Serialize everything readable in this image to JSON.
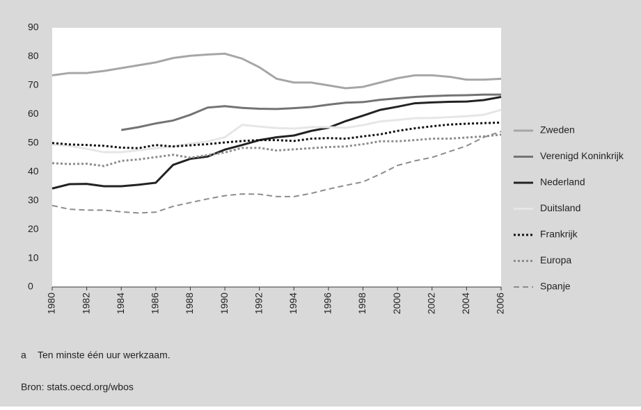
{
  "chart_data": {
    "type": "line",
    "x": [
      1980,
      1981,
      1982,
      1983,
      1984,
      1985,
      1986,
      1987,
      1988,
      1989,
      1990,
      1991,
      1992,
      1993,
      1994,
      1995,
      1996,
      1997,
      1998,
      1999,
      2000,
      2001,
      2002,
      2003,
      2004,
      2005,
      2006
    ],
    "xlim": [
      1980,
      2006
    ],
    "xticks": [
      1980,
      1982,
      1984,
      1986,
      1988,
      1990,
      1992,
      1994,
      1996,
      1998,
      2000,
      2002,
      2004,
      2006
    ],
    "ylim": [
      0,
      90
    ],
    "yticks": [
      0,
      10,
      20,
      30,
      40,
      50,
      60,
      70,
      80,
      90
    ],
    "legend": "right",
    "series": [
      {
        "name": "Zweden",
        "color": "#a6a6a6",
        "style": "solid",
        "width": 3,
        "values": [
          73.5,
          74.3,
          74.3,
          75,
          76,
          77,
          78,
          79.5,
          80.3,
          80.7,
          81,
          79.3,
          76.3,
          72.3,
          71,
          71,
          70,
          69,
          69.5,
          71,
          72.5,
          73.5,
          73.5,
          73,
          72,
          72,
          72.3
        ]
      },
      {
        "name": "Verenigd Koninkrijk",
        "color": "#737373",
        "style": "solid",
        "width": 3,
        "values": [
          null,
          null,
          null,
          null,
          54.5,
          55.5,
          56.8,
          57.8,
          59.8,
          62.3,
          62.8,
          62.2,
          61.9,
          61.8,
          62.1,
          62.5,
          63.3,
          64,
          64.2,
          65,
          65.5,
          66,
          66.3,
          66.5,
          66.6,
          66.8,
          66.8
        ]
      },
      {
        "name": "Nederland",
        "color": "#222222",
        "style": "solid",
        "width": 3,
        "values": [
          34.2,
          35.7,
          35.8,
          35,
          35,
          35.5,
          36.2,
          42.4,
          44.5,
          45.3,
          47.7,
          49.3,
          51,
          52,
          52.6,
          54.2,
          55.3,
          57.6,
          59.5,
          61.5,
          62.6,
          63.8,
          64.1,
          64.3,
          64.4,
          64.9,
          66
        ]
      },
      {
        "name": "Duitsland",
        "color": "#e6e6e6",
        "style": "solid",
        "width": 3,
        "values": [
          49.5,
          49,
          48,
          46.8,
          46.8,
          47.5,
          48.2,
          48.8,
          49.8,
          50.5,
          52,
          56.3,
          55.7,
          55.2,
          55,
          55.5,
          55.5,
          55.3,
          56.2,
          57.5,
          58,
          58.6,
          58.7,
          59,
          59.3,
          59.8,
          61.5
        ]
      },
      {
        "name": "Frankrijk",
        "color": "#111111",
        "style": "dotted",
        "width": 3,
        "values": [
          50,
          49.5,
          49.3,
          49,
          48.4,
          48.2,
          49.3,
          48.8,
          49.2,
          49.6,
          50.2,
          50.7,
          51,
          51,
          50.7,
          51.5,
          51.7,
          51.5,
          52.3,
          53,
          54.2,
          55.1,
          55.8,
          56.4,
          56.7,
          56.9,
          57.1
        ]
      },
      {
        "name": "Europa",
        "color": "#8c8c8c",
        "style": "dotted",
        "width": 3,
        "values": [
          43,
          42.7,
          42.8,
          42,
          43.8,
          44.3,
          45.1,
          45.9,
          44.9,
          45.8,
          46.7,
          48.3,
          48.3,
          47.4,
          47.8,
          48.2,
          48.6,
          48.8,
          49.6,
          50.6,
          50.6,
          51,
          51.5,
          51.5,
          51.9,
          52.3,
          52.9
        ]
      },
      {
        "name": "Spanje",
        "color": "#8c8c8c",
        "style": "dashed",
        "width": 2,
        "values": [
          28.3,
          27,
          26.7,
          26.7,
          26.1,
          25.7,
          26,
          28,
          29.3,
          30.6,
          31.7,
          32.3,
          32.2,
          31.4,
          31.4,
          32.5,
          34,
          35.3,
          36.5,
          39.2,
          42.2,
          43.8,
          45,
          47,
          49,
          52,
          54
        ]
      }
    ]
  },
  "footnote_marker": "a",
  "footnote": "Ten minste één uur werkzaam.",
  "source": "Bron: stats.oecd.org/wbos"
}
